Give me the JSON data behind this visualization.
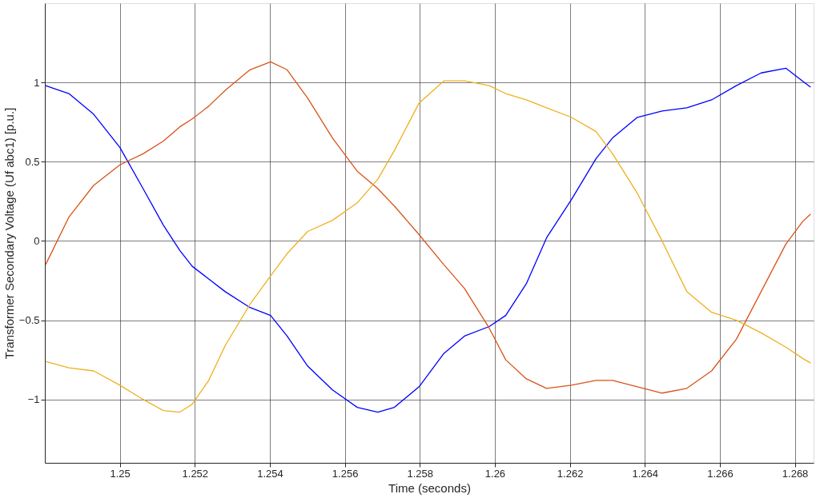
{
  "chart_data": {
    "type": "line",
    "xlabel": "Time (seconds)",
    "ylabel": "Transformer Secondary Voltage (Uf abc1) [p.u.]",
    "x": [
      1.24802,
      1.24864,
      1.2493,
      1.25,
      1.25062,
      1.25116,
      1.2516,
      1.25193,
      1.25237,
      1.25281,
      1.25347,
      1.25402,
      1.25446,
      1.25501,
      1.25567,
      1.25633,
      1.25688,
      1.25732,
      1.25798,
      1.25864,
      1.25919,
      1.25985,
      1.26029,
      1.26084,
      1.26138,
      1.26204,
      1.2627,
      1.26314,
      1.2638,
      1.26446,
      1.26512,
      1.26578,
      1.26644,
      1.2671,
      1.26776,
      1.2682,
      1.26842
    ],
    "series": [
      {
        "color": "#0000ff",
        "values": [
          0.98,
          0.93,
          0.8,
          0.59,
          0.33,
          0.1,
          -0.06,
          -0.16,
          -0.24,
          -0.32,
          -0.42,
          -0.47,
          -0.6,
          -0.79,
          -0.94,
          -1.05,
          -1.08,
          -1.05,
          -0.92,
          -0.71,
          -0.6,
          -0.54,
          -0.47,
          -0.27,
          0.02,
          0.26,
          0.52,
          0.65,
          0.78,
          0.82,
          0.84,
          0.89,
          0.98,
          1.06,
          1.09,
          1.01,
          0.97
        ]
      },
      {
        "color": "#d95319",
        "values": [
          -0.15,
          0.15,
          0.35,
          0.48,
          0.55,
          0.63,
          0.72,
          0.77,
          0.85,
          0.95,
          1.08,
          1.13,
          1.08,
          0.9,
          0.65,
          0.44,
          0.33,
          0.22,
          0.04,
          -0.15,
          -0.3,
          -0.55,
          -0.75,
          -0.87,
          -0.93,
          -0.91,
          -0.88,
          -0.88,
          -0.92,
          -0.96,
          -0.93,
          -0.82,
          -0.62,
          -0.32,
          -0.02,
          0.12,
          0.17
        ]
      },
      {
        "color": "#edb120",
        "values": [
          -0.76,
          -0.8,
          -0.82,
          -0.91,
          -1.0,
          -1.07,
          -1.08,
          -1.03,
          -0.88,
          -0.66,
          -0.4,
          -0.22,
          -0.08,
          0.06,
          0.13,
          0.24,
          0.39,
          0.57,
          0.87,
          1.01,
          1.01,
          0.98,
          0.93,
          0.89,
          0.84,
          0.78,
          0.69,
          0.55,
          0.3,
          0.0,
          -0.32,
          -0.45,
          -0.5,
          -0.58,
          -0.67,
          -0.74,
          -0.77
        ]
      }
    ],
    "xlim": [
      1.248,
      1.2685
    ],
    "xticks": [
      1.25,
      1.252,
      1.254,
      1.256,
      1.258,
      1.26,
      1.262,
      1.264,
      1.266,
      1.268
    ],
    "ylim": [
      -1.4,
      1.5
    ],
    "yticks": [
      -1,
      -0.5,
      0,
      0.5,
      1
    ],
    "grid": true,
    "legend": false,
    "marker": "none",
    "line_style": "solid"
  }
}
